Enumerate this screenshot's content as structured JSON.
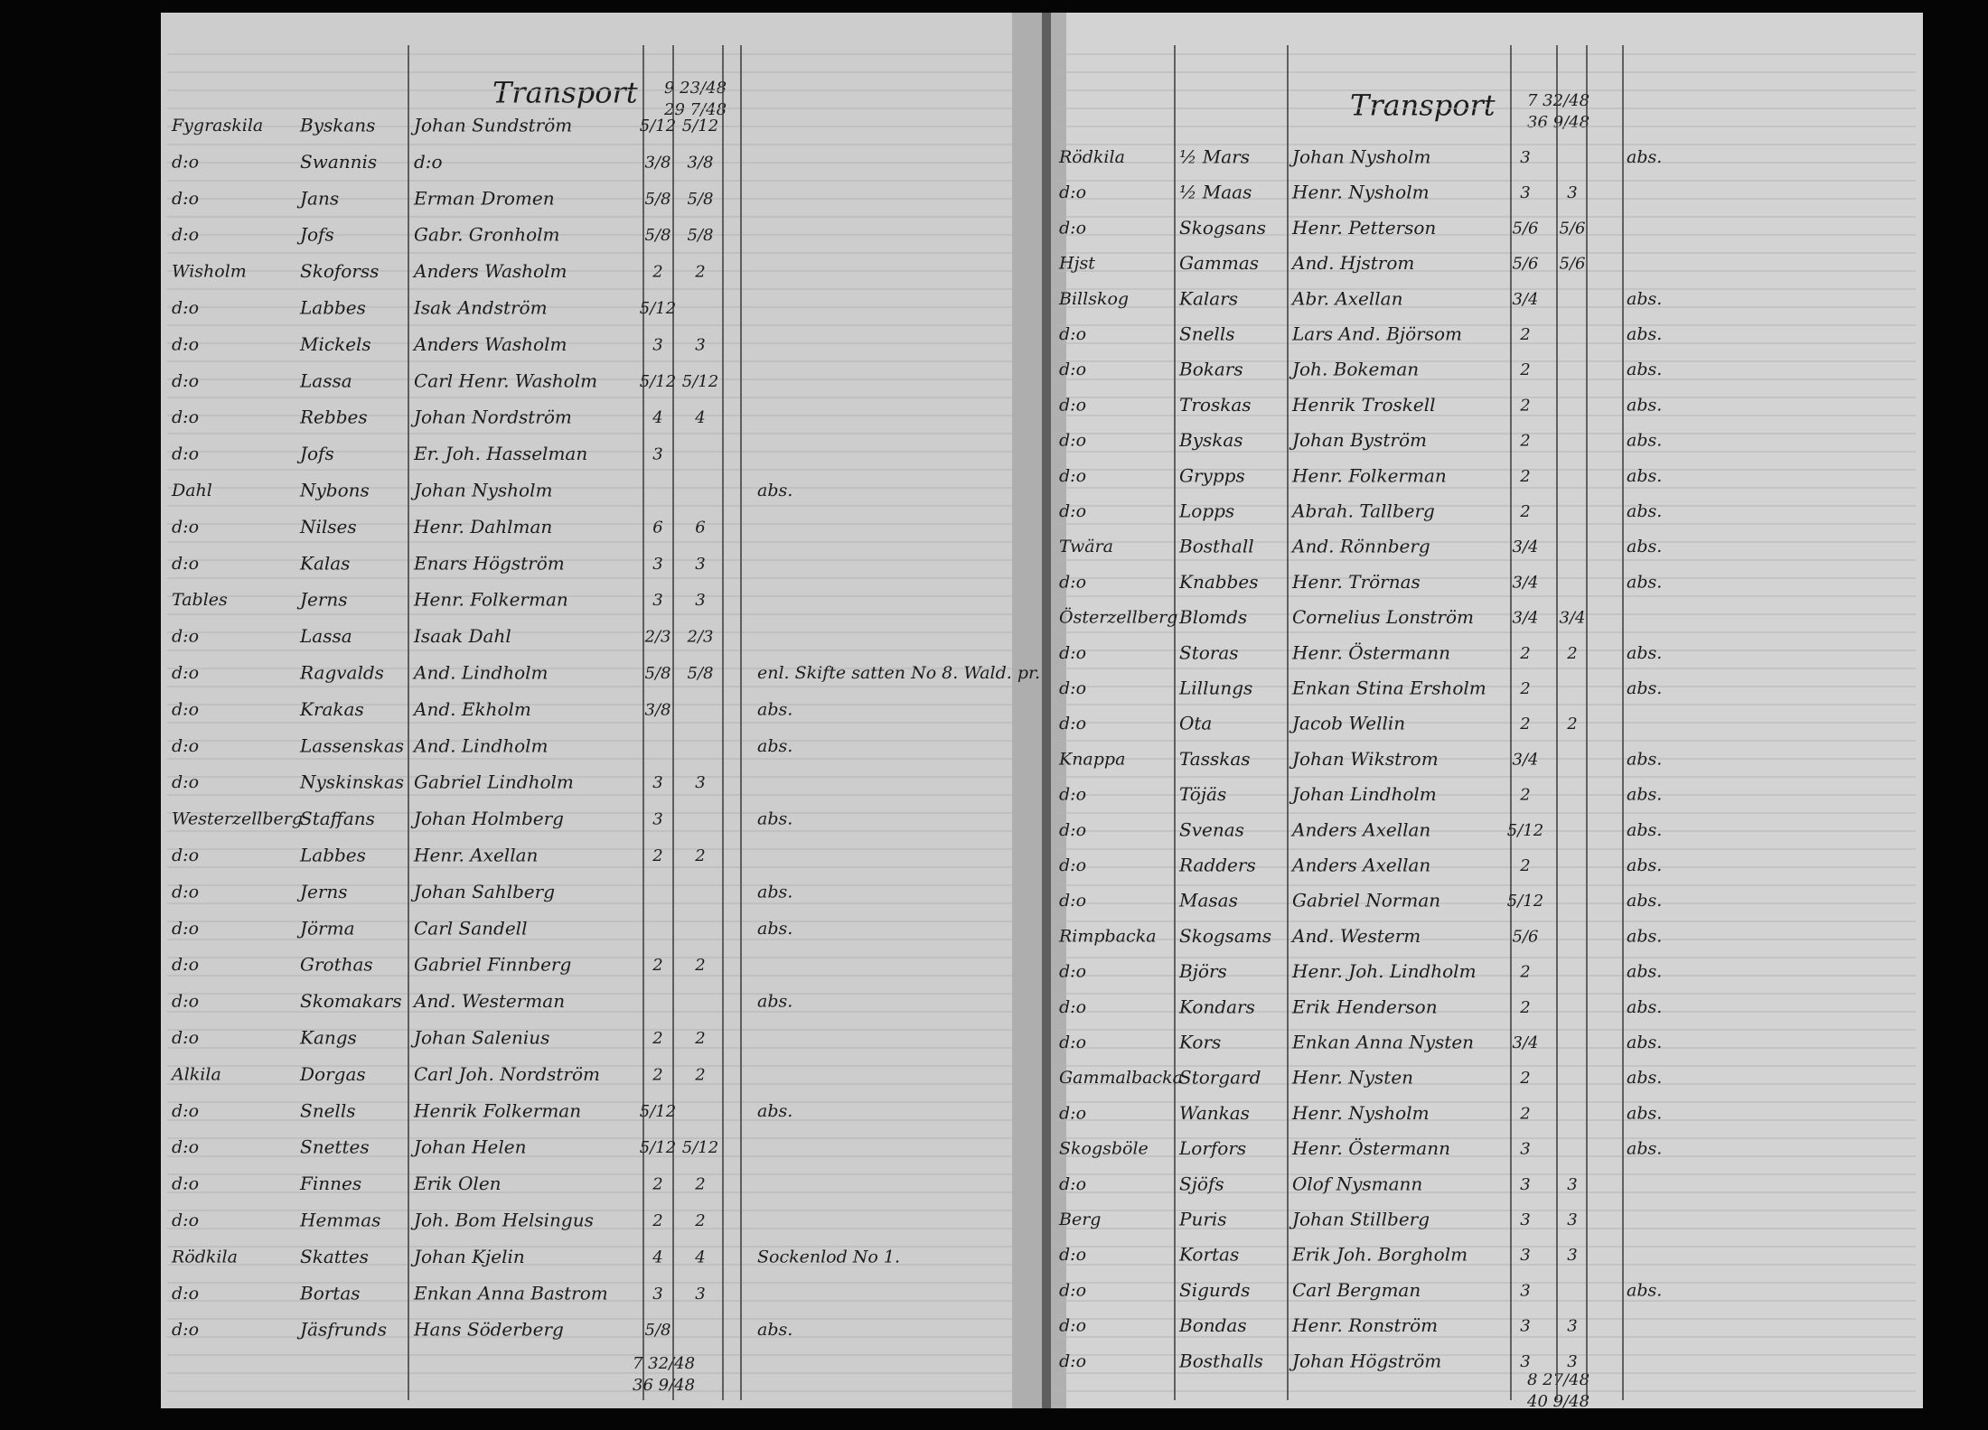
{
  "left_page": {
    "header": "Transport",
    "header_total": "9 23/48",
    "header_total2": "29 7/48",
    "rows": [
      {
        "place": "Fygraskila",
        "farm": "Byskans",
        "owner": "Johan Sundström",
        "share": "5/12",
        "share2": "5/12"
      },
      {
        "place": "d:o",
        "farm": "Swannis",
        "owner": "d:o",
        "share": "3/8",
        "share2": "3/8"
      },
      {
        "place": "d:o",
        "farm": "Jans",
        "owner": "Erman Dromen",
        "share": "5/8",
        "share2": "5/8"
      },
      {
        "place": "d:o",
        "farm": "Jofs",
        "owner": "Gabr. Gronholm",
        "share": "5/8",
        "share2": "5/8"
      },
      {
        "place": "Wisholm",
        "farm": "Skoforss",
        "owner": "Anders Washolm",
        "share": "2",
        "share2": "2"
      },
      {
        "place": "d:o",
        "farm": "Labbes",
        "owner": "Isak Andström",
        "share": "5/12"
      },
      {
        "place": "d:o",
        "farm": "Mickels",
        "owner": "Anders Washolm",
        "share": "3",
        "share2": "3"
      },
      {
        "place": "d:o",
        "farm": "Lassa",
        "owner": "Carl Henr. Washolm",
        "share": "5/12",
        "share2": "5/12"
      },
      {
        "place": "d:o",
        "farm": "Rebbes",
        "owner": "Johan Nordström",
        "share": "4",
        "share2": "4"
      },
      {
        "place": "d:o",
        "farm": "Jofs",
        "owner": "Er. Joh. Hasselman",
        "share": "3"
      },
      {
        "place": "Dahl",
        "farm": "Nybons",
        "owner": "Johan Nysholm",
        "note": "abs."
      },
      {
        "place": "d:o",
        "farm": "Nilses",
        "owner": "Henr. Dahlman",
        "share": "6",
        "share2": "6"
      },
      {
        "place": "d:o",
        "farm": "Kalas",
        "owner": "Enars Högström",
        "share": "3",
        "share2": "3"
      },
      {
        "place": "Tables",
        "farm": "Jerns",
        "owner": "Henr. Folkerman",
        "share": "3",
        "share2": "3"
      },
      {
        "place": "d:o",
        "farm": "Lassa",
        "owner": "Isaak Dahl",
        "share": "2/3",
        "share2": "2/3"
      },
      {
        "place": "d:o",
        "farm": "Ragvalds",
        "owner": "And. Lindholm",
        "share": "5/8",
        "share2": "5/8",
        "note": "enl. Skifte satten No 8. Wald. pr."
      },
      {
        "place": "d:o",
        "farm": "Krakas",
        "owner": "And. Ekholm",
        "share": "3/8",
        "note": "abs."
      },
      {
        "place": "d:o",
        "farm": "Lassenskas",
        "owner": "And. Lindholm",
        "note": "abs."
      },
      {
        "place": "d:o",
        "farm": "Nyskinskas",
        "owner": "Gabriel Lindholm",
        "share": "3",
        "share2": "3"
      },
      {
        "place": "Westerzellberg",
        "farm": "Staffans",
        "owner": "Johan Holmberg",
        "share": "3",
        "note": "abs."
      },
      {
        "place": "d:o",
        "farm": "Labbes",
        "owner": "Henr. Axellan",
        "share": "2",
        "share2": "2"
      },
      {
        "place": "d:o",
        "farm": "Jerns",
        "owner": "Johan Sahlberg",
        "note": "abs."
      },
      {
        "place": "d:o",
        "farm": "Jörma",
        "owner": "Carl Sandell",
        "note": "abs."
      },
      {
        "place": "d:o",
        "farm": "Grothas",
        "owner": "Gabriel Finnberg",
        "share": "2",
        "share2": "2"
      },
      {
        "place": "d:o",
        "farm": "Skomakars",
        "owner": "And. Westerman",
        "note": "abs."
      },
      {
        "place": "d:o",
        "farm": "Kangs",
        "owner": "Johan Salenius",
        "share": "2",
        "share2": "2"
      },
      {
        "place": "Alkila",
        "farm": "Dorgas",
        "owner": "Carl Joh. Nordström",
        "share": "2",
        "share2": "2"
      },
      {
        "place": "d:o",
        "farm": "Snells",
        "owner": "Henrik Folkerman",
        "share": "5/12",
        "note": "abs."
      },
      {
        "place": "d:o",
        "farm": "Snettes",
        "owner": "Johan Helen",
        "share": "5/12",
        "share2": "5/12"
      },
      {
        "place": "d:o",
        "farm": "Finnes",
        "owner": "Erik Olen",
        "share": "2",
        "share2": "2"
      },
      {
        "place": "d:o",
        "farm": "Hemmas",
        "owner": "Joh. Bom Helsingus",
        "share": "2",
        "share2": "2"
      },
      {
        "place": "Rödkila",
        "farm": "Skattes",
        "owner": "Johan Kjelin",
        "share": "4",
        "share2": "4",
        "note": "Sockenlod No 1."
      },
      {
        "place": "d:o",
        "farm": "Bortas",
        "owner": "Enkan Anna Bastrom",
        "share": "3",
        "share2": "3"
      },
      {
        "place": "d:o",
        "farm": "Jäsfrunds",
        "owner": "Hans Söderberg",
        "share": "5/8",
        "note": "abs."
      }
    ],
    "footer_total": "7 32/48",
    "footer_total2": "36 9/48"
  },
  "right_page": {
    "header": "Transport",
    "header_total": "7 32/48",
    "header_total2": "36 9/48",
    "rows": [
      {
        "place": "Rödkila",
        "farm": "½ Mars",
        "owner": "Johan Nysholm",
        "share": "3",
        "note": "abs."
      },
      {
        "place": "d:o",
        "farm": "½ Maas",
        "owner": "Henr. Nysholm",
        "share": "3",
        "share2": "3"
      },
      {
        "place": "d:o",
        "farm": "Skogsans",
        "owner": "Henr. Petterson",
        "share": "5/6",
        "share2": "5/6"
      },
      {
        "place": "Hjst",
        "farm": "Gammas",
        "owner": "And. Hjstrom",
        "share": "5/6",
        "share2": "5/6"
      },
      {
        "place": "Billskog",
        "farm": "Kalars",
        "owner": "Abr. Axellan",
        "share": "3/4",
        "note": "abs."
      },
      {
        "place": "d:o",
        "farm": "Snells",
        "owner": "Lars And. Björsom",
        "share": "2",
        "note": "abs."
      },
      {
        "place": "d:o",
        "farm": "Bokars",
        "owner": "Joh. Bokeman",
        "share": "2",
        "note": "abs."
      },
      {
        "place": "d:o",
        "farm": "Troskas",
        "owner": "Henrik Troskell",
        "share": "2",
        "note": "abs."
      },
      {
        "place": "d:o",
        "farm": "Byskas",
        "owner": "Johan Byström",
        "share": "2",
        "note": "abs."
      },
      {
        "place": "d:o",
        "farm": "Grypps",
        "owner": "Henr. Folkerman",
        "share": "2",
        "note": "abs."
      },
      {
        "place": "d:o",
        "farm": "Lopps",
        "owner": "Abrah. Tallberg",
        "share": "2",
        "note": "abs."
      },
      {
        "place": "Twära",
        "farm": "Bosthall",
        "owner": "And. Rönnberg",
        "share": "3/4",
        "note": "abs."
      },
      {
        "place": "d:o",
        "farm": "Knabbes",
        "owner": "Henr. Trörnas",
        "share": "3/4",
        "note": "abs."
      },
      {
        "place": "Österzellberg",
        "farm": "Blomds",
        "owner": "Cornelius Lonström",
        "share": "3/4",
        "share2": "3/4"
      },
      {
        "place": "d:o",
        "farm": "Storas",
        "owner": "Henr. Östermann",
        "share": "2",
        "share2": "2",
        "note": "abs."
      },
      {
        "place": "d:o",
        "farm": "Lillungs",
        "owner": "Enkan Stina Ersholm",
        "share": "2",
        "note": "abs."
      },
      {
        "place": "d:o",
        "farm": "Ota",
        "owner": "Jacob Wellin",
        "share": "2",
        "share2": "2"
      },
      {
        "place": "Knappa",
        "farm": "Tasskas",
        "owner": "Johan Wikstrom",
        "share": "3/4",
        "note": "abs."
      },
      {
        "place": "d:o",
        "farm": "Töjäs",
        "owner": "Johan Lindholm",
        "share": "2",
        "note": "abs."
      },
      {
        "place": "d:o",
        "farm": "Svenas",
        "owner": "Anders Axellan",
        "share": "5/12",
        "note": "abs."
      },
      {
        "place": "d:o",
        "farm": "Radders",
        "owner": "Anders Axellan",
        "share": "2",
        "note": "abs."
      },
      {
        "place": "d:o",
        "farm": "Masas",
        "owner": "Gabriel Norman",
        "share": "5/12",
        "note": "abs."
      },
      {
        "place": "Rimpbacka",
        "farm": "Skogsams",
        "owner": "And. Westerm",
        "share": "5/6",
        "note": "abs."
      },
      {
        "place": "d:o",
        "farm": "Björs",
        "owner": "Henr. Joh. Lindholm",
        "share": "2",
        "note": "abs."
      },
      {
        "place": "d:o",
        "farm": "Kondars",
        "owner": "Erik Henderson",
        "share": "2",
        "note": "abs."
      },
      {
        "place": "d:o",
        "farm": "Kors",
        "owner": "Enkan Anna Nysten",
        "share": "3/4",
        "note": "abs."
      },
      {
        "place": "Gammalbacka",
        "farm": "Storgard",
        "owner": "Henr. Nysten",
        "share": "2",
        "note": "abs."
      },
      {
        "place": "d:o",
        "farm": "Wankas",
        "owner": "Henr. Nysholm",
        "share": "2",
        "note": "abs."
      },
      {
        "place": "Skogsböle",
        "farm": "Lorfors",
        "owner": "Henr. Östermann",
        "share": "3",
        "note": "abs."
      },
      {
        "place": "d:o",
        "farm": "Sjöfs",
        "owner": "Olof Nysmann",
        "share": "3",
        "share2": "3"
      },
      {
        "place": "Berg",
        "farm": "Puris",
        "owner": "Johan Stillberg",
        "share": "3",
        "share2": "3"
      },
      {
        "place": "d:o",
        "farm": "Kortas",
        "owner": "Erik Joh. Borgholm",
        "share": "3",
        "share2": "3"
      },
      {
        "place": "d:o",
        "farm": "Sigurds",
        "owner": "Carl Bergman",
        "share": "3",
        "note": "abs."
      },
      {
        "place": "d:o",
        "farm": "Bondas",
        "owner": "Henr. Ronström",
        "share": "3",
        "share2": "3"
      },
      {
        "place": "d:o",
        "farm": "Bosthalls",
        "owner": "Johan Högström",
        "share": "3",
        "share2": "3"
      }
    ],
    "footer_total": "8 27/48",
    "footer_total2": "40 9/48"
  }
}
